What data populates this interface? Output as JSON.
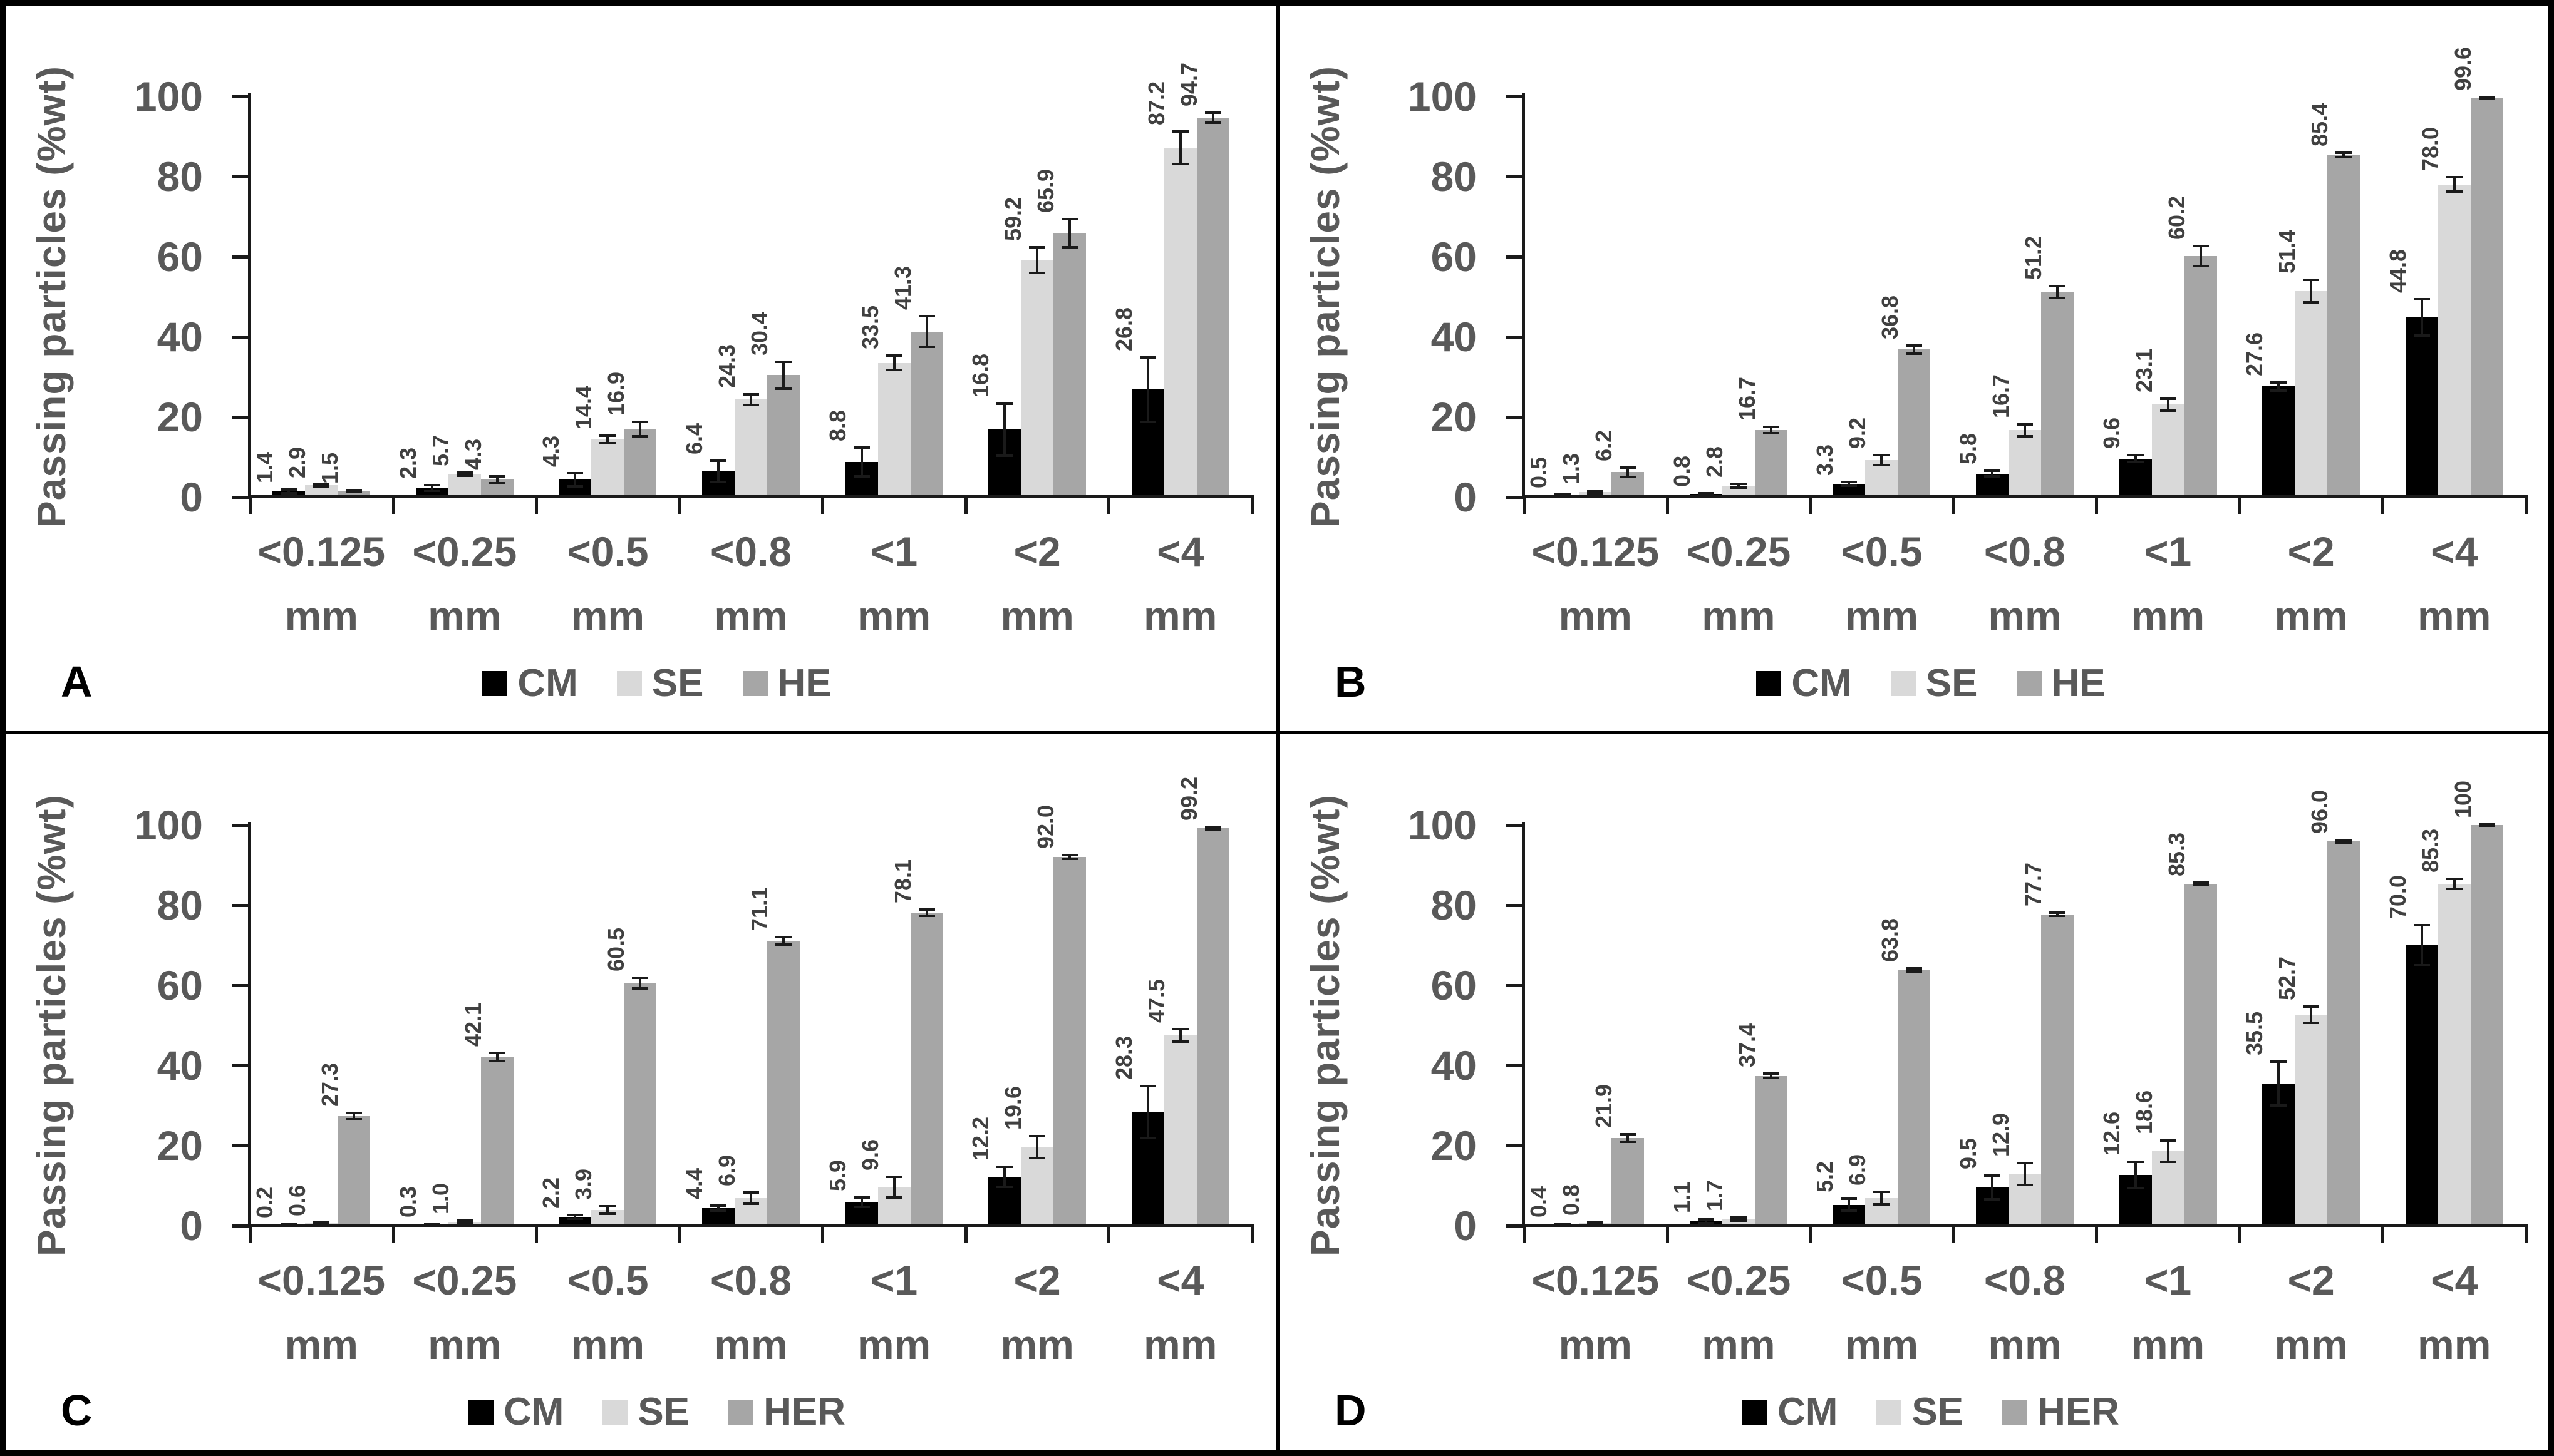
{
  "figure": {
    "border_color": "#000000",
    "background": "#ffffff",
    "colors": {
      "cm": "#000000",
      "se": "#d9d9d9",
      "he": "#a6a6a6",
      "axis_text": "#595959",
      "data_label_text": "#404040",
      "axis_line": "#1a1a1a"
    }
  },
  "chart_data": [
    {
      "panel": "A",
      "type": "bar",
      "ylabel": "Passing particles (%wt)",
      "ylim": [
        0,
        100
      ],
      "yticks": [
        0,
        20,
        40,
        60,
        80,
        100
      ],
      "grid": false,
      "legend_position": "bottom",
      "categories": [
        "<0.125",
        "<0.25",
        "<0.5",
        "<0.8",
        "<1",
        "<2",
        "<4"
      ],
      "category_unit": "mm",
      "series": [
        {
          "name": "CM",
          "color": "#000000",
          "values": [
            1.4,
            2.3,
            4.3,
            6.4,
            8.8,
            16.8,
            26.8
          ],
          "labels": [
            "1.4",
            "2.3",
            "4.3",
            "6.4",
            "8.8",
            "16.8",
            "26.8"
          ],
          "errors": [
            0.4,
            0.7,
            1.6,
            2.7,
            3.6,
            6.5,
            8.0
          ]
        },
        {
          "name": "SE",
          "color": "#d9d9d9",
          "values": [
            2.9,
            5.7,
            14.4,
            24.3,
            33.5,
            59.2,
            87.2
          ],
          "labels": [
            "2.9",
            "5.7",
            "14.4",
            "24.3",
            "33.5",
            "59.2",
            "87.2"
          ],
          "errors": [
            0.2,
            0.4,
            0.9,
            1.4,
            1.8,
            3.2,
            4.0
          ]
        },
        {
          "name": "HE",
          "color": "#a6a6a6",
          "values": [
            1.5,
            4.3,
            16.9,
            30.4,
            41.3,
            65.9,
            94.7
          ],
          "labels": [
            "1.5",
            "4.3",
            "16.9",
            "30.4",
            "41.3",
            "65.9",
            "94.7"
          ],
          "errors": [
            0.2,
            0.9,
            1.8,
            3.3,
            3.8,
            3.5,
            1.2
          ]
        }
      ]
    },
    {
      "panel": "B",
      "type": "bar",
      "ylabel": "Passing particles (%wt)",
      "ylim": [
        0,
        100
      ],
      "yticks": [
        0,
        20,
        40,
        60,
        80,
        100
      ],
      "grid": false,
      "legend_position": "bottom",
      "categories": [
        "<0.125",
        "<0.25",
        "<0.5",
        "<0.8",
        "<1",
        "<2",
        "<4"
      ],
      "category_unit": "mm",
      "series": [
        {
          "name": "CM",
          "color": "#000000",
          "values": [
            0.5,
            0.8,
            3.3,
            5.8,
            9.6,
            27.6,
            44.8
          ],
          "labels": [
            "0.5",
            "0.8",
            "3.3",
            "5.8",
            "9.6",
            "27.6",
            "44.8"
          ],
          "errors": [
            0.1,
            0.15,
            0.5,
            0.7,
            0.9,
            1.0,
            4.5
          ]
        },
        {
          "name": "SE",
          "color": "#d9d9d9",
          "values": [
            1.3,
            2.8,
            9.2,
            16.7,
            23.1,
            51.4,
            78.0
          ],
          "labels": [
            "1.3",
            "2.8",
            "9.2",
            "16.7",
            "23.1",
            "51.4",
            "78.0"
          ],
          "errors": [
            0.3,
            0.5,
            1.2,
            1.5,
            1.5,
            2.8,
            1.8
          ]
        },
        {
          "name": "HE",
          "color": "#a6a6a6",
          "values": [
            6.2,
            16.7,
            36.8,
            51.2,
            60.2,
            85.4,
            99.6
          ],
          "labels": [
            "6.2",
            "16.7",
            "36.8",
            "51.2",
            "60.2",
            "85.4",
            "99.6"
          ],
          "errors": [
            1.2,
            0.8,
            1.0,
            1.5,
            2.5,
            0.6,
            0.3
          ]
        }
      ]
    },
    {
      "panel": "C",
      "type": "bar",
      "ylabel": "Passing particles (%wt)",
      "ylim": [
        0,
        100
      ],
      "yticks": [
        0,
        20,
        40,
        60,
        80,
        100
      ],
      "grid": false,
      "legend_position": "bottom",
      "categories": [
        "<0.125",
        "<0.25",
        "<0.5",
        "<0.8",
        "<1",
        "<2",
        "<4"
      ],
      "category_unit": "mm",
      "series": [
        {
          "name": "CM",
          "color": "#000000",
          "values": [
            0.2,
            0.3,
            2.2,
            4.4,
            5.9,
            12.2,
            28.3
          ],
          "labels": [
            "0.2",
            "0.3",
            "2.2",
            "4.4",
            "5.9",
            "12.2",
            "28.3"
          ],
          "errors": [
            0.05,
            0.1,
            0.5,
            0.6,
            1.2,
            2.5,
            6.5
          ]
        },
        {
          "name": "SE",
          "color": "#d9d9d9",
          "values": [
            0.6,
            1.0,
            3.9,
            6.9,
            9.6,
            19.6,
            47.5
          ],
          "labels": [
            "0.6",
            "1.0",
            "3.9",
            "6.9",
            "9.6",
            "19.6",
            "47.5"
          ],
          "errors": [
            0.15,
            0.2,
            1.0,
            1.4,
            2.6,
            2.8,
            1.5
          ]
        },
        {
          "name": "HER",
          "color": "#a6a6a6",
          "values": [
            27.3,
            42.1,
            60.5,
            71.1,
            78.1,
            92.0,
            99.2
          ],
          "labels": [
            "27.3",
            "42.1",
            "60.5",
            "71.1",
            "78.1",
            "92.0",
            "99.2"
          ],
          "errors": [
            0.8,
            1.0,
            1.3,
            1.0,
            0.8,
            0.5,
            0.3
          ]
        }
      ]
    },
    {
      "panel": "D",
      "type": "bar",
      "ylabel": "Passing particles (%wt)",
      "ylim": [
        0,
        100
      ],
      "yticks": [
        0,
        20,
        40,
        60,
        80,
        100
      ],
      "grid": false,
      "legend_position": "bottom",
      "categories": [
        "<0.125",
        "<0.25",
        "<0.5",
        "<0.8",
        "<1",
        "<2",
        "<4"
      ],
      "category_unit": "mm",
      "series": [
        {
          "name": "CM",
          "color": "#000000",
          "values": [
            0.4,
            1.1,
            5.2,
            9.5,
            12.6,
            35.5,
            70.0
          ],
          "labels": [
            "0.4",
            "1.1",
            "5.2",
            "9.5",
            "12.6",
            "35.5",
            "70.0"
          ],
          "errors": [
            0.1,
            0.4,
            1.5,
            3.0,
            3.3,
            5.5,
            5.0
          ]
        },
        {
          "name": "SE",
          "color": "#d9d9d9",
          "values": [
            0.8,
            1.7,
            6.9,
            12.9,
            18.6,
            52.7,
            85.3
          ],
          "labels": [
            "0.8",
            "1.7",
            "6.9",
            "12.9",
            "18.6",
            "52.7",
            "85.3"
          ],
          "errors": [
            0.2,
            0.4,
            1.6,
            2.7,
            2.6,
            2.0,
            1.2
          ]
        },
        {
          "name": "HER",
          "color": "#a6a6a6",
          "values": [
            21.9,
            37.4,
            63.8,
            77.7,
            85.3,
            96.0,
            100
          ],
          "labels": [
            "21.9",
            "37.4",
            "63.8",
            "77.7",
            "85.3",
            "96.0",
            "100"
          ],
          "errors": [
            0.9,
            0.5,
            0.4,
            0.4,
            0.3,
            0.3,
            0.2
          ]
        }
      ]
    }
  ]
}
